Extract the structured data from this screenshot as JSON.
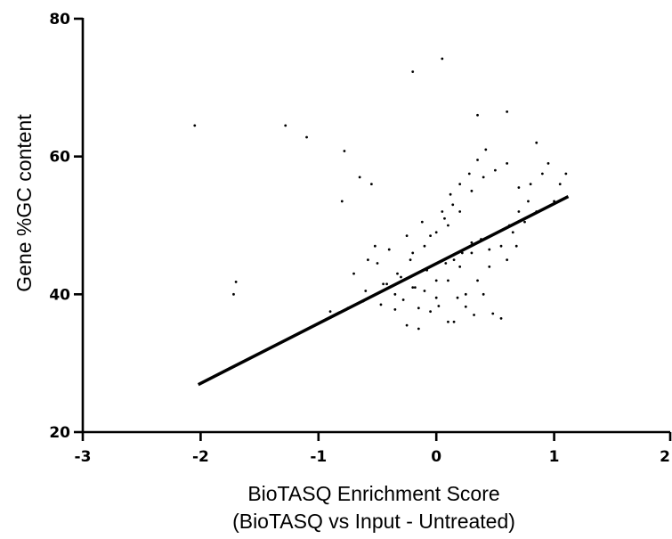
{
  "chart_data": {
    "type": "scatter",
    "title": "",
    "xlabel": "BioTASQ Enrichment Score",
    "xlabel_line2": "(BioTASQ vs Input - Untreated)",
    "ylabel": "Gene %GC content",
    "xlim": [
      -3,
      2
    ],
    "ylim": [
      20,
      80
    ],
    "x_ticks": [
      -3,
      -2,
      -1,
      0,
      1,
      2
    ],
    "x_tick_labels": [
      "-3",
      "-2",
      "-1",
      "0",
      "1",
      "2"
    ],
    "y_ticks": [
      20,
      40,
      60,
      80
    ],
    "y_tick_labels": [
      "20",
      "40",
      "60",
      "80"
    ],
    "grid": false,
    "legend": "none",
    "trend_line": {
      "x": [
        -2.02,
        1.12
      ],
      "y": [
        26.9,
        54.2
      ]
    },
    "points": {
      "x": [
        -2.05,
        -1.72,
        -1.7,
        -1.28,
        -1.1,
        -0.78,
        -0.8,
        -0.65,
        -0.55,
        -0.2,
        0.05,
        0.35,
        0.6,
        0.85,
        0.95,
        1.1,
        -0.75,
        -0.9,
        -0.62,
        -0.47,
        -0.35,
        -0.28,
        -0.15,
        -0.05,
        0.02,
        0.1,
        0.18,
        0.25,
        0.32,
        0.4,
        0.48,
        0.55,
        -0.42,
        -0.3,
        -0.18,
        -0.08,
        0.0,
        0.08,
        0.15,
        0.22,
        0.3,
        0.38,
        0.45,
        0.52,
        0.62,
        0.7,
        0.78,
        -0.5,
        -0.4,
        -0.25,
        -0.12,
        0.05,
        0.12,
        0.2,
        0.28,
        0.35,
        0.42,
        -0.2,
        -0.05,
        0.1,
        0.2,
        0.3,
        0.4,
        0.5,
        0.6,
        0.7,
        0.8,
        0.9,
        -0.6,
        -0.45,
        -0.33,
        -0.22,
        -0.1,
        0.0,
        0.07,
        0.14,
        -0.35,
        -0.2,
        -0.1,
        0.0,
        0.1,
        0.2,
        0.3,
        -0.25,
        -0.15,
        0.15,
        0.25,
        0.35,
        0.45,
        0.55,
        0.65,
        0.75,
        0.85,
        1.0,
        1.05,
        -0.7,
        -0.58,
        -0.52,
        0.6,
        0.68
      ],
      "y": [
        64.5,
        40,
        41.8,
        64.5,
        62.8,
        60.8,
        53.5,
        57,
        56,
        72.3,
        74.2,
        66,
        66.5,
        62,
        59,
        57.5,
        38,
        37.5,
        39,
        38.5,
        37.8,
        39.2,
        38,
        37.5,
        38.3,
        36,
        39.5,
        38.2,
        37,
        40,
        37.2,
        36.5,
        41.5,
        42.5,
        41,
        43.5,
        42,
        44.5,
        45,
        46,
        47.5,
        48,
        46.5,
        49,
        50,
        52,
        53.5,
        44.5,
        46.5,
        48.5,
        50.5,
        52,
        54.5,
        56,
        57.5,
        59.5,
        61,
        46,
        48.5,
        50,
        52,
        55,
        57,
        58,
        59,
        55.5,
        56,
        57.5,
        40.5,
        41.5,
        43,
        45,
        47,
        49,
        51,
        53,
        40,
        41,
        40.5,
        39.5,
        42,
        44,
        46,
        35.5,
        35,
        36,
        40,
        42,
        44,
        47,
        49,
        50.5,
        52,
        53.5,
        56,
        43,
        45,
        47,
        45,
        47
      ]
    }
  }
}
